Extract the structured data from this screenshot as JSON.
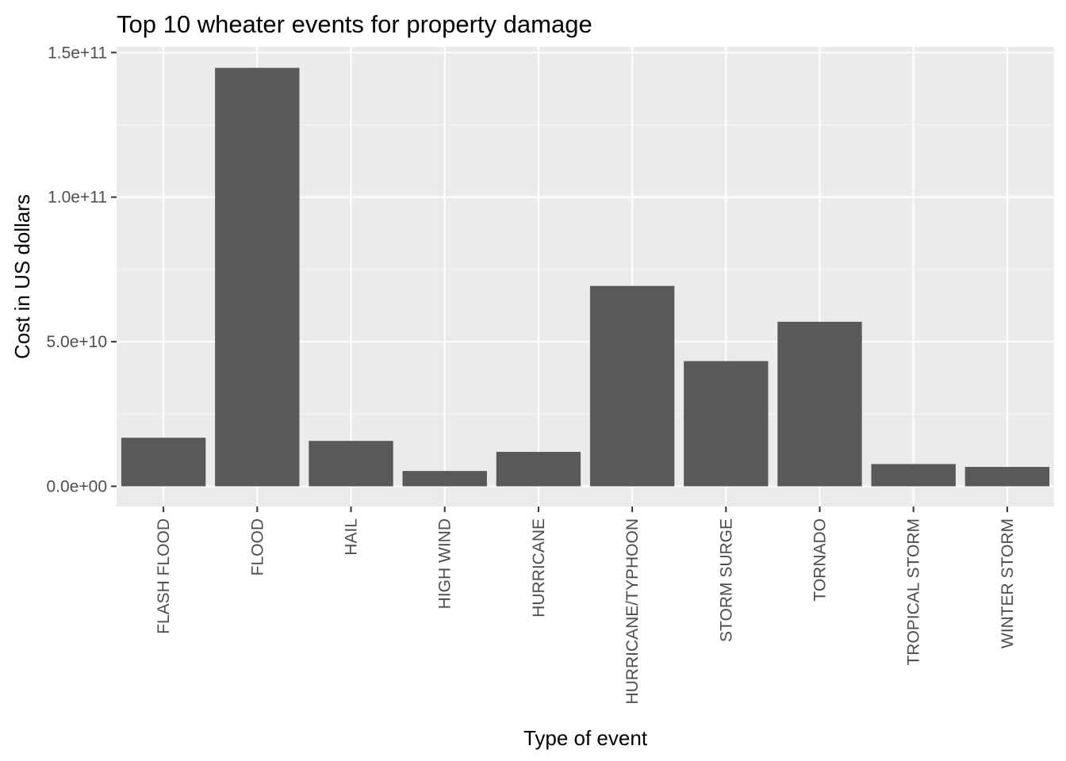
{
  "chart_data": {
    "type": "bar",
    "title": "Top 10 wheater events for property damage",
    "xlabel": "Type of event",
    "ylabel": "Cost in US dollars",
    "categories": [
      "FLASH FLOOD",
      "FLOOD",
      "HAIL",
      "HIGH WIND",
      "HURRICANE",
      "HURRICANE/TYPHOON",
      "STORM SURGE",
      "TORNADO",
      "TROPICAL STORM",
      "WINTER STORM"
    ],
    "values": [
      16800000000,
      144700000000,
      15700000000,
      5300000000,
      11900000000,
      69300000000,
      43300000000,
      56900000000,
      7700000000,
      6700000000
    ],
    "ylim": [
      -7000000000,
      152000000000
    ],
    "yticks": [
      0,
      50000000000,
      100000000000,
      150000000000
    ],
    "ytick_labels": [
      "0.0e+00",
      "5.0e+10",
      "1.0e+11",
      "1.5e+11"
    ],
    "grid": true,
    "legend": "none",
    "colors": {
      "bar": "#595959",
      "panel": "#ebebeb",
      "grid_major": "#ffffff",
      "grid_minor": "#f5f5f5",
      "tick": "#333333"
    }
  }
}
